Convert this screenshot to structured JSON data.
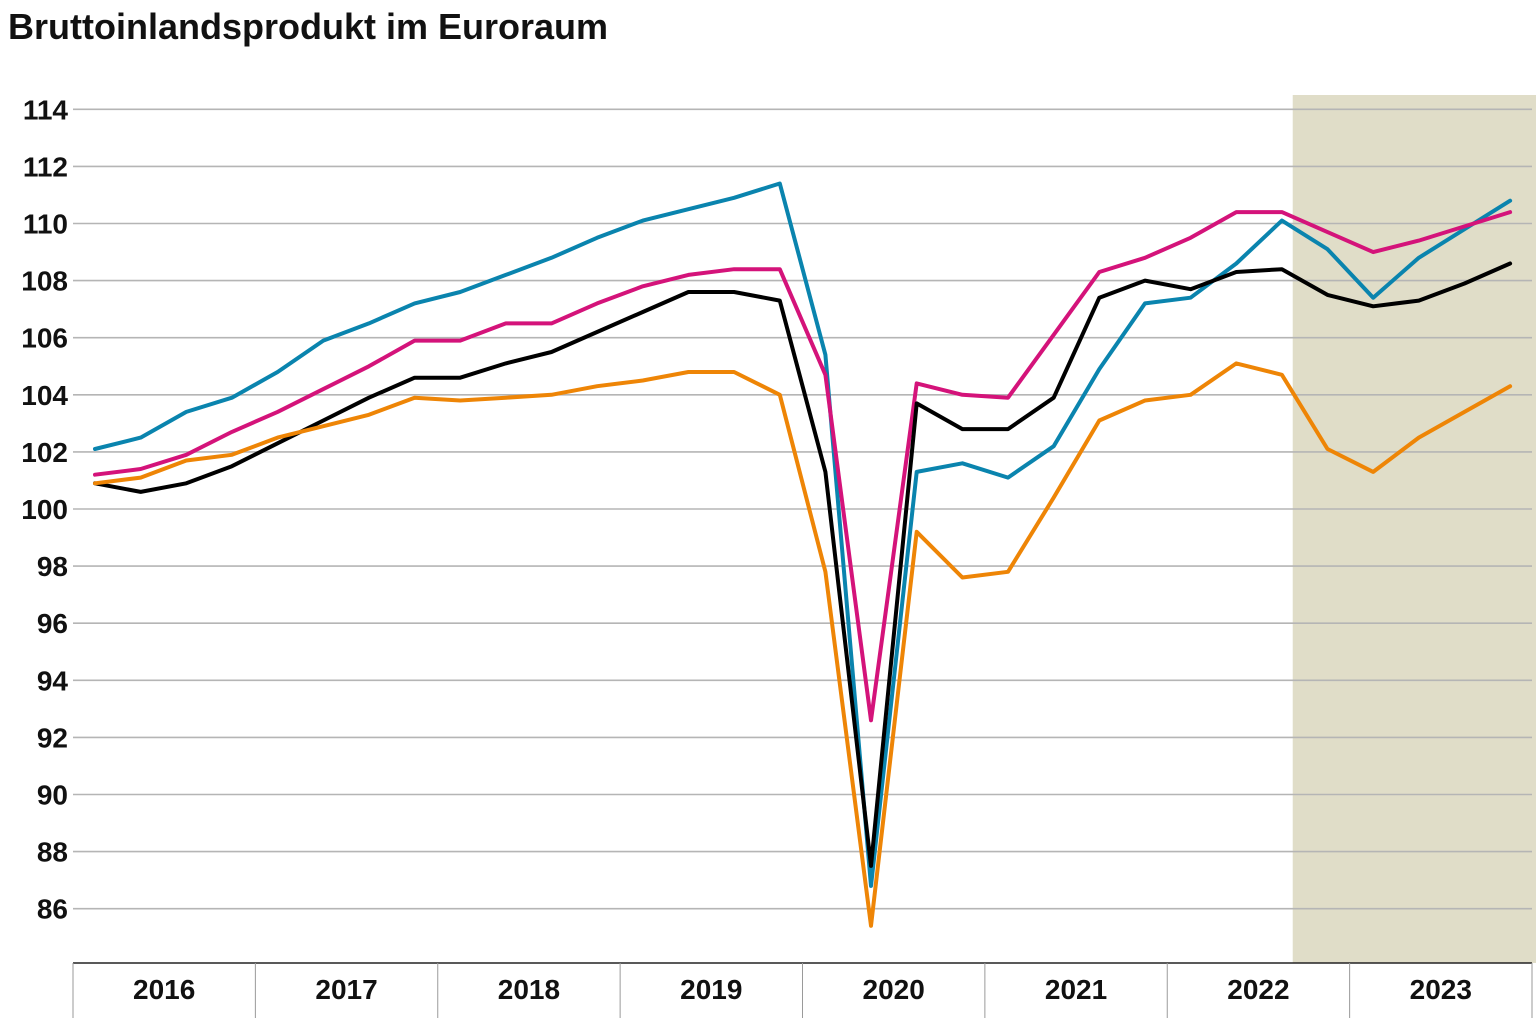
{
  "chart_data": {
    "type": "line",
    "title": "Bruttoinlandsprodukt im Euroraum",
    "xlabel": "",
    "ylabel": "",
    "ylim": [
      84,
      114.5
    ],
    "yticks": [
      86,
      88,
      90,
      92,
      94,
      96,
      98,
      100,
      102,
      104,
      106,
      108,
      110,
      112,
      114
    ],
    "grid": true,
    "year_labels": [
      "2016",
      "2017",
      "2018",
      "2019",
      "2020",
      "2021",
      "2022",
      "2023"
    ],
    "shaded_region": {
      "from_quarter": 26.5,
      "to_quarter": 32.5,
      "color": "#e0ddc8"
    },
    "series": [
      {
        "name": "teal",
        "color": "#0a84ae",
        "values": [
          102.1,
          102.5,
          103.4,
          103.9,
          104.8,
          105.9,
          106.5,
          107.2,
          107.6,
          108.2,
          108.8,
          109.5,
          110.1,
          110.5,
          110.9,
          111.4,
          105.4,
          86.8,
          101.3,
          101.6,
          101.1,
          102.2,
          104.9,
          107.2,
          107.4,
          108.6,
          110.1,
          109.1,
          107.4,
          108.8,
          109.8,
          110.8
        ]
      },
      {
        "name": "magenta",
        "color": "#d4137a",
        "values": [
          101.2,
          101.4,
          101.9,
          102.7,
          103.4,
          104.2,
          105.0,
          105.9,
          105.9,
          106.5,
          106.5,
          107.2,
          107.8,
          108.2,
          108.4,
          108.4,
          104.7,
          92.6,
          104.4,
          104.0,
          103.9,
          106.1,
          108.3,
          108.8,
          109.5,
          110.4,
          110.4,
          109.7,
          109.0,
          109.4,
          109.9,
          110.4
        ]
      },
      {
        "name": "black",
        "color": "#000000",
        "values": [
          100.9,
          100.6,
          100.9,
          101.5,
          102.3,
          103.1,
          103.9,
          104.6,
          104.6,
          105.1,
          105.5,
          106.2,
          106.9,
          107.6,
          107.6,
          107.3,
          101.3,
          87.5,
          103.7,
          102.8,
          102.8,
          103.9,
          107.4,
          108.0,
          107.7,
          108.3,
          108.4,
          107.5,
          107.1,
          107.3,
          107.9,
          108.6
        ]
      },
      {
        "name": "orange",
        "color": "#ee8506",
        "values": [
          100.9,
          101.1,
          101.7,
          101.9,
          102.5,
          102.9,
          103.3,
          103.9,
          103.8,
          103.9,
          104.0,
          104.3,
          104.5,
          104.8,
          104.8,
          104.0,
          97.8,
          85.4,
          99.2,
          97.6,
          97.8,
          100.4,
          103.1,
          103.8,
          104.0,
          105.1,
          104.7,
          102.1,
          101.3,
          102.5,
          103.4,
          104.3
        ]
      }
    ]
  }
}
